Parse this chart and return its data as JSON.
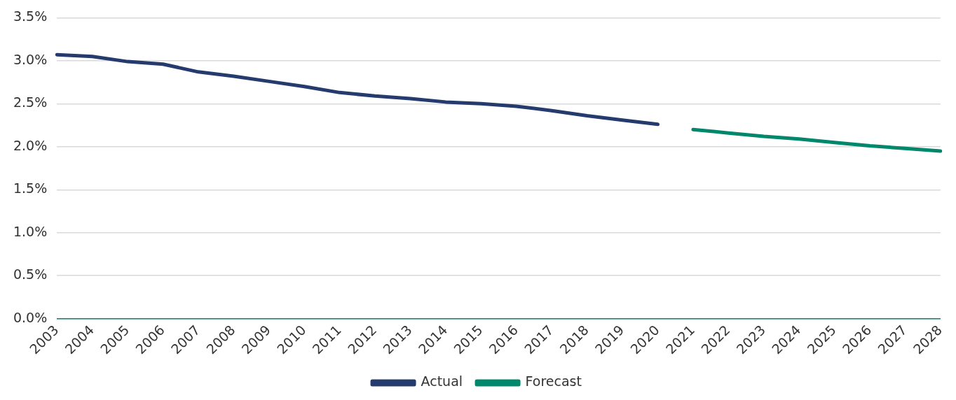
{
  "chart_data": {
    "type": "line",
    "categories": [
      "2003",
      "2004",
      "2005",
      "2006",
      "2007",
      "2008",
      "2009",
      "2010",
      "2011",
      "2012",
      "2013",
      "2014",
      "2015",
      "2016",
      "2017",
      "2018",
      "2019",
      "2020",
      "2021",
      "2022",
      "2023",
      "2024",
      "2025",
      "2026",
      "2027",
      "2028"
    ],
    "series": [
      {
        "name": "Actual",
        "color": "#253b6e",
        "values": [
          3.07,
          3.05,
          2.99,
          2.96,
          2.87,
          2.82,
          2.76,
          2.7,
          2.63,
          2.59,
          2.56,
          2.52,
          2.5,
          2.47,
          2.42,
          2.36,
          2.31,
          2.26,
          null,
          null,
          null,
          null,
          null,
          null,
          null,
          null
        ]
      },
      {
        "name": "Forecast",
        "color": "#00876c",
        "values": [
          null,
          null,
          null,
          null,
          null,
          null,
          null,
          null,
          null,
          null,
          null,
          null,
          null,
          null,
          null,
          null,
          null,
          null,
          2.2,
          2.16,
          2.12,
          2.09,
          2.05,
          2.01,
          1.98,
          1.95
        ]
      }
    ],
    "ylim": [
      0,
      3.5
    ],
    "yticks": [
      {
        "value": 0,
        "label": "0.0%"
      },
      {
        "value": 0.5,
        "label": "0.5%"
      },
      {
        "value": 1,
        "label": "1.0%"
      },
      {
        "value": 1.5,
        "label": "1.5%"
      },
      {
        "value": 2,
        "label": "2.0%"
      },
      {
        "value": 2.5,
        "label": "2.5%"
      },
      {
        "value": 3,
        "label": "3.0%"
      },
      {
        "value": 3.5,
        "label": "3.5%"
      }
    ],
    "grid": "y",
    "legend": "bottom",
    "marker": "none",
    "line_style": "solid"
  }
}
